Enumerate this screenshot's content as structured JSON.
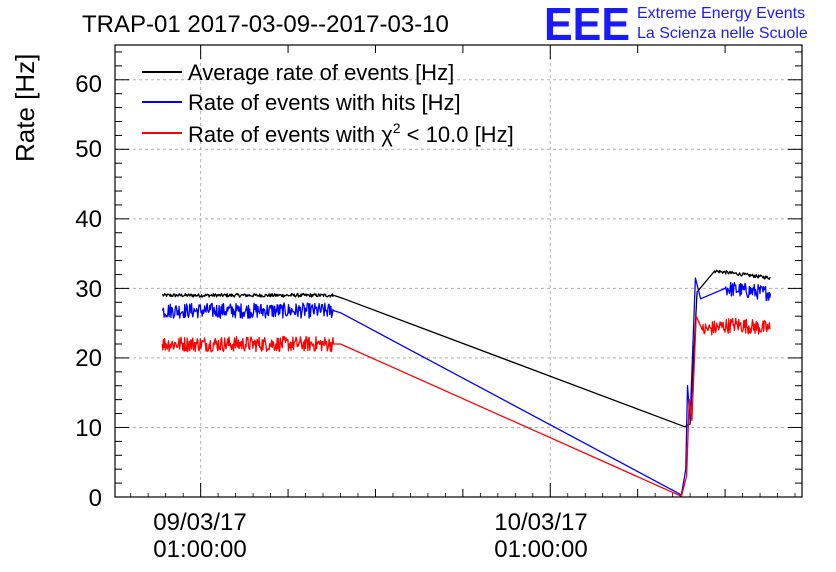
{
  "chart_data": {
    "type": "line",
    "title": "TRAP-01 2017-03-09--2017-03-10",
    "ylabel": "Rate [Hz]",
    "xlabel": "",
    "ylim": [
      0,
      65
    ],
    "xlim_hours": [
      -4.9,
      34.4
    ],
    "yticks": [
      0,
      10,
      20,
      30,
      40,
      50,
      60
    ],
    "xticks": [
      {
        "hours": 0,
        "date": "09/03/17",
        "time": "01:00:00"
      },
      {
        "hours": 20,
        "date": "10/03/17",
        "time": "01:00:00"
      }
    ],
    "grid": true,
    "legend_position": "top-left",
    "series": [
      {
        "name": "Average rate of events [Hz]",
        "color": "#000000",
        "noise": 0.25,
        "points": [
          [
            -2.2,
            29.0
          ],
          [
            7.6,
            29.0
          ],
          [
            8.2,
            28.5
          ],
          [
            27.7,
            10.1
          ],
          [
            28.0,
            10.5
          ],
          [
            28.4,
            29.5
          ],
          [
            29.4,
            32.5
          ],
          [
            31.0,
            32.0
          ],
          [
            32.6,
            31.5
          ]
        ]
      },
      {
        "name": "Rate of events with hits [Hz]",
        "color": "#0000ff",
        "noise": 1.1,
        "points": [
          [
            -2.2,
            26.8
          ],
          [
            7.6,
            26.8
          ],
          [
            8.0,
            26.5
          ],
          [
            27.5,
            0.3
          ],
          [
            27.75,
            4.0
          ],
          [
            27.85,
            16.0
          ],
          [
            28.0,
            11.0
          ],
          [
            28.3,
            31.5
          ],
          [
            28.6,
            28.5
          ],
          [
            30.0,
            30.0
          ],
          [
            32.6,
            29.3
          ]
        ]
      },
      {
        "name": "Rate of events with χ² < 10.0 [Hz]",
        "color": "#ff0000",
        "noise": 1.1,
        "points": [
          [
            -2.2,
            22.0
          ],
          [
            7.6,
            22.0
          ],
          [
            8.0,
            22.0
          ],
          [
            27.5,
            0.1
          ],
          [
            27.8,
            3.0
          ],
          [
            27.95,
            14.0
          ],
          [
            28.1,
            11.0
          ],
          [
            28.35,
            26.0
          ],
          [
            28.7,
            24.0
          ],
          [
            30.5,
            24.8
          ],
          [
            32.6,
            24.2
          ]
        ]
      }
    ]
  },
  "legend": {
    "item1": "Average rate of events [Hz]",
    "item2": "Rate of events with hits [Hz]",
    "item3_prefix": "Rate of events with χ",
    "item3_sup": "2",
    "item3_suffix": " < 10.0 [Hz]"
  },
  "logo": {
    "mark": "EEE",
    "line1": "Extreme Energy Events",
    "line2": "La Scienza nelle Scuole",
    "color": "#1a1aff"
  }
}
